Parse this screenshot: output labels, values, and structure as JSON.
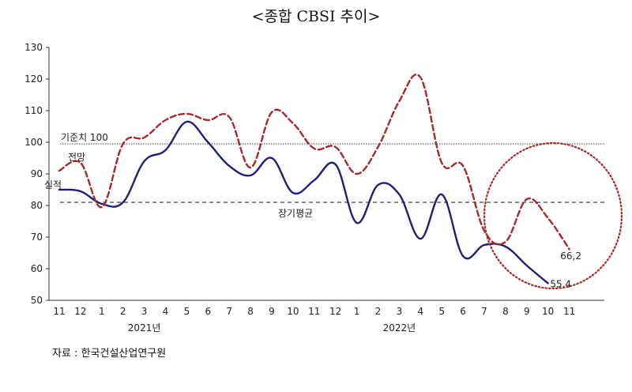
{
  "title": "<종합 CBSI 추이>",
  "source": "자료 : 한국건설산업연구원",
  "chart_data": {
    "type": "line",
    "categories": [
      "11",
      "12",
      "1",
      "2",
      "3",
      "4",
      "5",
      "6",
      "7",
      "8",
      "9",
      "10",
      "11",
      "12",
      "1",
      "2",
      "3",
      "4",
      "5",
      "6",
      "7",
      "8",
      "9",
      "10",
      "11"
    ],
    "year_labels": [
      {
        "label": "2021년",
        "index": 4
      },
      {
        "label": "2022년",
        "index": 16
      }
    ],
    "ylim": [
      50,
      130
    ],
    "yticks": [
      50,
      60,
      70,
      80,
      90,
      100,
      110,
      120,
      130
    ],
    "series": [
      {
        "name": "실적",
        "style": "solid",
        "color": "#1f1f7a",
        "values": [
          85,
          84.5,
          80.5,
          81,
          94,
          97.5,
          106.5,
          100,
          92.5,
          89.5,
          95,
          84,
          88,
          93,
          74.5,
          86.5,
          83.5,
          69.5,
          83.5,
          64,
          67.5,
          67,
          61,
          55.4,
          null
        ]
      },
      {
        "name": "전망",
        "style": "dashed",
        "color": "#a52a2a",
        "values": [
          91,
          93.5,
          79.5,
          99.5,
          101.5,
          107,
          109,
          107,
          108,
          92,
          109.5,
          106,
          98,
          98.5,
          90,
          98.5,
          113,
          120.5,
          93.5,
          92.5,
          72,
          68.5,
          82,
          76,
          66.2
        ]
      }
    ],
    "reference_lines": [
      {
        "label": "기준치 100",
        "value": 99.5,
        "style": "dotted"
      },
      {
        "label": "장기평균",
        "value": 81,
        "style": "dashed"
      }
    ],
    "end_labels": [
      {
        "text": "66,2",
        "series": 1,
        "index": 24
      },
      {
        "text": "55,4",
        "series": 0,
        "index": 23
      }
    ],
    "colors": {
      "actual": "#1f1f7a",
      "forecast": "#a52a2a",
      "circle": "#a52a2a"
    }
  }
}
